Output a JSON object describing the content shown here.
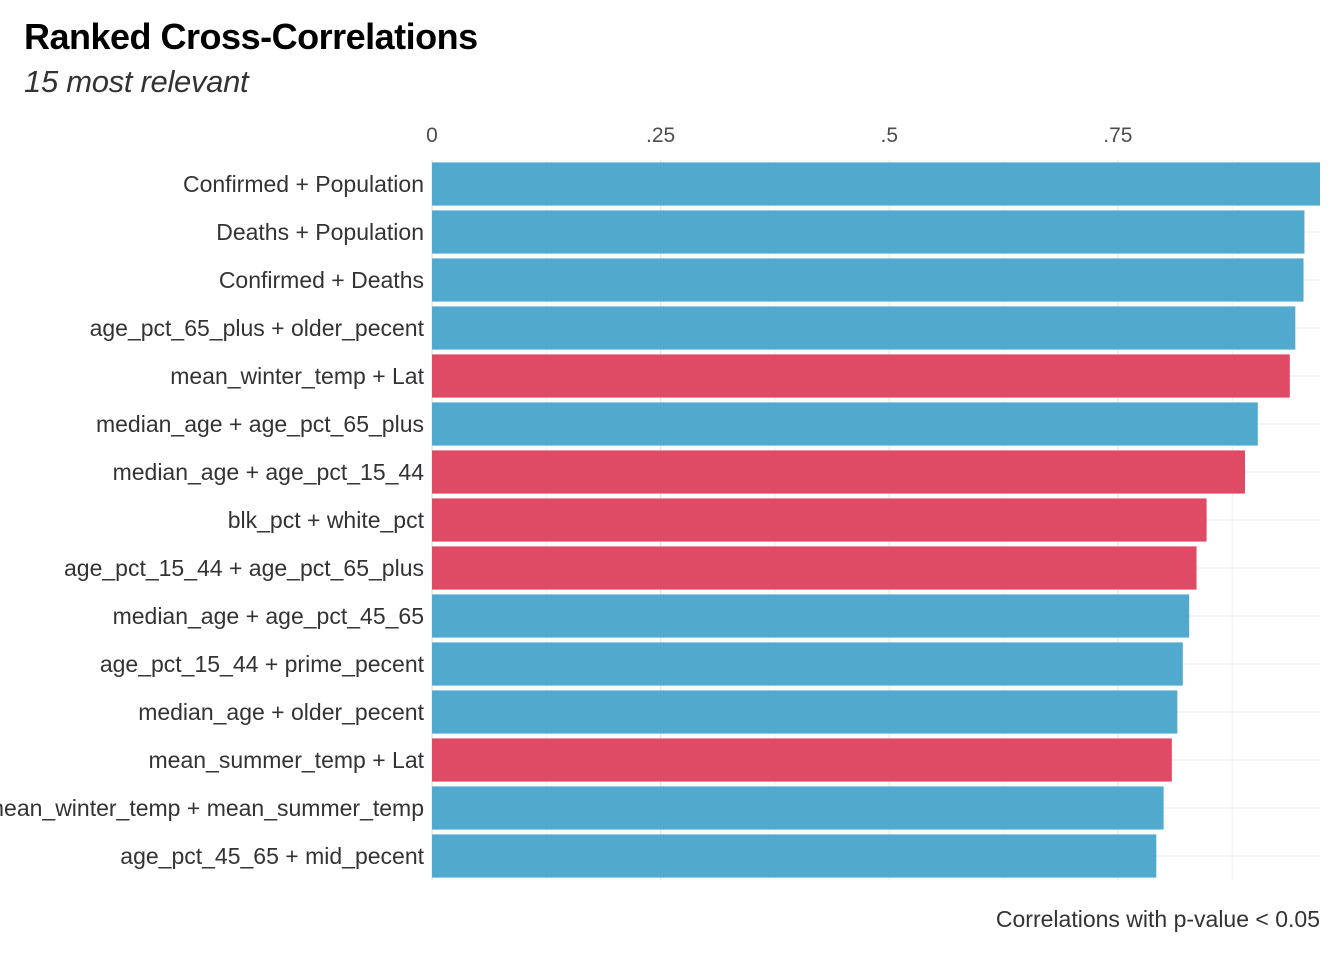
{
  "chart_data": {
    "type": "bar",
    "orientation": "horizontal",
    "title": "Ranked Cross-Correlations",
    "subtitle": "15 most relevant",
    "caption": "Correlations with p-value < 0.05",
    "x_ticks": [
      {
        "value": 0,
        "label": "0"
      },
      {
        "value": 0.25,
        "label": ".25"
      },
      {
        "value": 0.5,
        "label": ".5"
      },
      {
        "value": 0.75,
        "label": ".75"
      }
    ],
    "xlim": [
      0,
      0.971
    ],
    "grid": true,
    "colors": {
      "positive": "#52a9ce",
      "negative": "#df4a65"
    },
    "categories": [
      "Confirmed + Population",
      "Deaths + Population",
      "Confirmed + Deaths",
      "age_pct_65_plus + older_pecent",
      "mean_winter_temp + Lat",
      "median_age + age_pct_65_plus",
      "median_age + age_pct_15_44",
      "blk_pct + white_pct",
      "age_pct_15_44 + age_pct_65_plus",
      "median_age + age_pct_45_65",
      "age_pct_15_44 + prime_pecent",
      "median_age + older_pecent",
      "mean_summer_temp + Lat",
      "mean_winter_temp + mean_summer_temp",
      "age_pct_45_65 + mid_pecent"
    ],
    "values": [
      0.971,
      0.954,
      0.953,
      0.944,
      -0.938,
      0.903,
      -0.889,
      -0.847,
      -0.836,
      0.828,
      0.821,
      0.815,
      -0.809,
      0.8,
      0.792
    ],
    "value_labels": [
      ".971",
      ".954",
      ".953",
      ".944",
      "-.938",
      ".903",
      "-.889",
      "-.847",
      "-.836",
      ".828",
      ".821",
      ".815",
      "-.809",
      ".8",
      ".792"
    ]
  }
}
